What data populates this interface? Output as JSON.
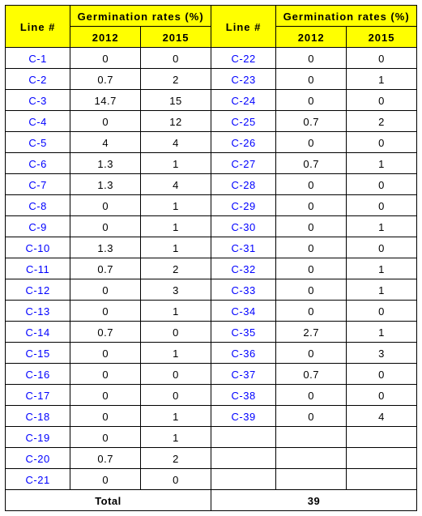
{
  "table": {
    "columns": {
      "line_label": "Line #",
      "group_label": "Germination rates (%)",
      "year_a": "2012",
      "year_b": "2015"
    },
    "colors": {
      "header_bg": "#ffff00",
      "header_fg": "#000000",
      "line_fg": "#0000ff",
      "value_fg": "#000000",
      "border": "#000000",
      "background": "#ffffff"
    },
    "fontsize": 13,
    "left_rows": [
      {
        "line": "C-1",
        "y2012": "0",
        "y2015": "0"
      },
      {
        "line": "C-2",
        "y2012": "0.7",
        "y2015": "2"
      },
      {
        "line": "C-3",
        "y2012": "14.7",
        "y2015": "15"
      },
      {
        "line": "C-4",
        "y2012": "0",
        "y2015": "12"
      },
      {
        "line": "C-5",
        "y2012": "4",
        "y2015": "4"
      },
      {
        "line": "C-6",
        "y2012": "1.3",
        "y2015": "1"
      },
      {
        "line": "C-7",
        "y2012": "1.3",
        "y2015": "4"
      },
      {
        "line": "C-8",
        "y2012": "0",
        "y2015": "1"
      },
      {
        "line": "C-9",
        "y2012": "0",
        "y2015": "1"
      },
      {
        "line": "C-10",
        "y2012": "1.3",
        "y2015": "1"
      },
      {
        "line": "C-11",
        "y2012": "0.7",
        "y2015": "2"
      },
      {
        "line": "C-12",
        "y2012": "0",
        "y2015": "3"
      },
      {
        "line": "C-13",
        "y2012": "0",
        "y2015": "1"
      },
      {
        "line": "C-14",
        "y2012": "0.7",
        "y2015": "0"
      },
      {
        "line": "C-15",
        "y2012": "0",
        "y2015": "1"
      },
      {
        "line": "C-16",
        "y2012": "0",
        "y2015": "0"
      },
      {
        "line": "C-17",
        "y2012": "0",
        "y2015": "0"
      },
      {
        "line": "C-18",
        "y2012": "0",
        "y2015": "1"
      },
      {
        "line": "C-19",
        "y2012": "0",
        "y2015": "1"
      },
      {
        "line": "C-20",
        "y2012": "0.7",
        "y2015": "2"
      },
      {
        "line": "C-21",
        "y2012": "0",
        "y2015": "0"
      }
    ],
    "right_rows": [
      {
        "line": "C-22",
        "y2012": "0",
        "y2015": "0"
      },
      {
        "line": "C-23",
        "y2012": "0",
        "y2015": "1"
      },
      {
        "line": "C-24",
        "y2012": "0",
        "y2015": "0"
      },
      {
        "line": "C-25",
        "y2012": "0.7",
        "y2015": "2"
      },
      {
        "line": "C-26",
        "y2012": "0",
        "y2015": "0"
      },
      {
        "line": "C-27",
        "y2012": "0.7",
        "y2015": "1"
      },
      {
        "line": "C-28",
        "y2012": "0",
        "y2015": "0"
      },
      {
        "line": "C-29",
        "y2012": "0",
        "y2015": "0"
      },
      {
        "line": "C-30",
        "y2012": "0",
        "y2015": "1"
      },
      {
        "line": "C-31",
        "y2012": "0",
        "y2015": "0"
      },
      {
        "line": "C-32",
        "y2012": "0",
        "y2015": "1"
      },
      {
        "line": "C-33",
        "y2012": "0",
        "y2015": "1"
      },
      {
        "line": "C-34",
        "y2012": "0",
        "y2015": "0"
      },
      {
        "line": "C-35",
        "y2012": "2.7",
        "y2015": "1"
      },
      {
        "line": "C-36",
        "y2012": "0",
        "y2015": "3"
      },
      {
        "line": "C-37",
        "y2012": "0.7",
        "y2015": "0"
      },
      {
        "line": "C-38",
        "y2012": "0",
        "y2015": "0"
      },
      {
        "line": "C-39",
        "y2012": "0",
        "y2015": "4"
      }
    ],
    "footer": {
      "left_label": "Total",
      "right_value": "39"
    }
  }
}
